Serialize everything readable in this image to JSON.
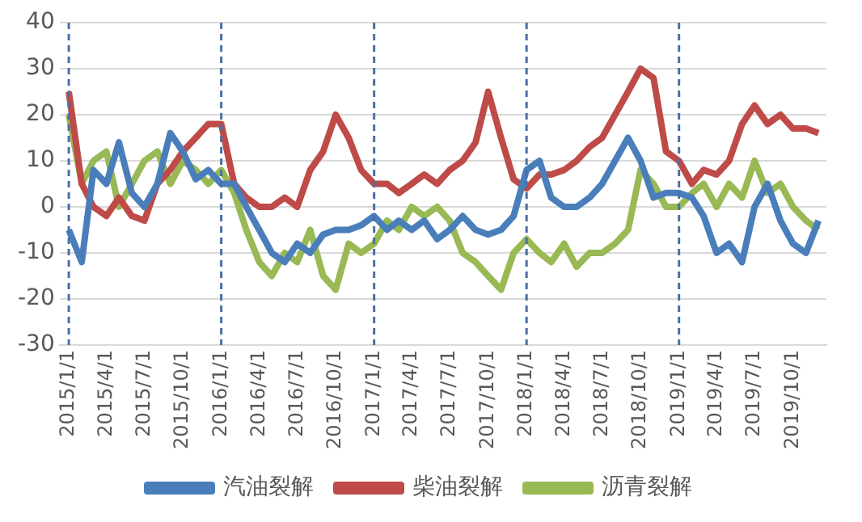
{
  "chart_data": {
    "type": "line",
    "x": [
      "2015-01-01",
      "2015-02-01",
      "2015-03-01",
      "2015-04-01",
      "2015-05-01",
      "2015-06-01",
      "2015-07-01",
      "2015-08-01",
      "2015-09-01",
      "2015-10-01",
      "2015-11-01",
      "2015-12-01",
      "2016-01-01",
      "2016-02-01",
      "2016-03-01",
      "2016-04-01",
      "2016-05-01",
      "2016-06-01",
      "2016-07-01",
      "2016-08-01",
      "2016-09-01",
      "2016-10-01",
      "2016-11-01",
      "2016-12-01",
      "2017-01-01",
      "2017-02-01",
      "2017-03-01",
      "2017-04-01",
      "2017-05-01",
      "2017-06-01",
      "2017-07-01",
      "2017-08-01",
      "2017-09-01",
      "2017-10-01",
      "2017-11-01",
      "2017-12-01",
      "2018-01-01",
      "2018-02-01",
      "2018-03-01",
      "2018-04-01",
      "2018-05-01",
      "2018-06-01",
      "2018-07-01",
      "2018-08-01",
      "2018-09-01",
      "2018-10-01",
      "2018-11-01",
      "2018-12-01",
      "2019-01-01",
      "2019-02-01",
      "2019-03-01",
      "2019-04-01",
      "2019-05-01",
      "2019-06-01",
      "2019-07-01",
      "2019-08-01",
      "2019-09-01",
      "2019-10-01",
      "2019-11-01",
      "2019-12-01"
    ],
    "series": [
      {
        "name": "汽油裂解",
        "color": "#4a7ebb",
        "values": [
          -5,
          -12,
          8,
          5,
          14,
          3,
          0,
          5,
          16,
          12,
          6,
          8,
          5,
          5,
          0,
          -5,
          -10,
          -12,
          -8,
          -10,
          -6,
          -5,
          -5,
          -4,
          -2,
          -5,
          -3,
          -5,
          -3,
          -7,
          -5,
          -2,
          -5,
          -6,
          -5,
          -2,
          8,
          10,
          2,
          0,
          0,
          2,
          5,
          10,
          15,
          10,
          2,
          3,
          3,
          2,
          -2,
          -10,
          -8,
          -12,
          0,
          5,
          -3,
          -8,
          -10,
          -3
        ]
      },
      {
        "name": "柴油裂解",
        "color": "#be4b48",
        "values": [
          25,
          5,
          0,
          -2,
          2,
          -2,
          -3,
          5,
          8,
          12,
          15,
          18,
          18,
          5,
          2,
          0,
          0,
          2,
          0,
          8,
          12,
          20,
          15,
          8,
          5,
          5,
          3,
          5,
          7,
          5,
          8,
          10,
          14,
          25,
          15,
          6,
          4,
          7,
          7,
          8,
          10,
          13,
          15,
          20,
          25,
          30,
          28,
          12,
          10,
          5,
          8,
          7,
          10,
          18,
          22,
          18,
          20,
          17,
          17,
          16
        ]
      },
      {
        "name": "沥青裂解",
        "color": "#98b954",
        "values": [
          20,
          5,
          10,
          12,
          0,
          5,
          10,
          12,
          5,
          10,
          8,
          5,
          8,
          3,
          -5,
          -12,
          -15,
          -10,
          -12,
          -5,
          -15,
          -18,
          -8,
          -10,
          -8,
          -3,
          -5,
          0,
          -2,
          0,
          -3,
          -10,
          -12,
          -15,
          -18,
          -10,
          -7,
          -10,
          -12,
          -8,
          -13,
          -10,
          -10,
          -8,
          -5,
          8,
          5,
          0,
          0,
          3,
          5,
          0,
          5,
          2,
          10,
          3,
          5,
          0,
          -3,
          -5
        ]
      }
    ],
    "xlim": [
      "2014-12-10",
      "2019-12-20"
    ],
    "xticks": [
      {
        "value": "2015-01-01",
        "label": "2015/1/1"
      },
      {
        "value": "2015-04-01",
        "label": "2015/4/1"
      },
      {
        "value": "2015-07-01",
        "label": "2015/7/1"
      },
      {
        "value": "2015-10-01",
        "label": "2015/10/1"
      },
      {
        "value": "2016-01-01",
        "label": "2016/1/1"
      },
      {
        "value": "2016-04-01",
        "label": "2016/4/1"
      },
      {
        "value": "2016-07-01",
        "label": "2016/7/1"
      },
      {
        "value": "2016-10-01",
        "label": "2016/10/1"
      },
      {
        "value": "2017-01-01",
        "label": "2017/1/1"
      },
      {
        "value": "2017-04-01",
        "label": "2017/4/1"
      },
      {
        "value": "2017-07-01",
        "label": "2017/7/1"
      },
      {
        "value": "2017-10-01",
        "label": "2017/10/1"
      },
      {
        "value": "2018-01-01",
        "label": "2018/1/1"
      },
      {
        "value": "2018-04-01",
        "label": "2018/4/1"
      },
      {
        "value": "2018-07-01",
        "label": "2018/7/1"
      },
      {
        "value": "2018-10-01",
        "label": "2018/10/1"
      },
      {
        "value": "2019-01-01",
        "label": "2019/1/1"
      },
      {
        "value": "2019-04-01",
        "label": "2019/4/1"
      },
      {
        "value": "2019-07-01",
        "label": "2019/7/1"
      },
      {
        "value": "2019-10-01",
        "label": "2019/10/1"
      }
    ],
    "ylim": [
      -30,
      40
    ],
    "yticks": [
      -30,
      -20,
      -10,
      0,
      10,
      20,
      30,
      40
    ],
    "ref_lines": [
      {
        "axis": "x",
        "value": "2015-01-01",
        "color": "#4a6fa5",
        "line_style": "dashed"
      },
      {
        "axis": "x",
        "value": "2016-01-01",
        "color": "#4a6fa5",
        "line_style": "dashed"
      },
      {
        "axis": "x",
        "value": "2017-01-01",
        "color": "#4a6fa5",
        "line_style": "dashed"
      },
      {
        "axis": "x",
        "value": "2018-01-01",
        "color": "#4a6fa5",
        "line_style": "dashed"
      },
      {
        "axis": "x",
        "value": "2019-01-01",
        "color": "#4a6fa5",
        "line_style": "dashed"
      }
    ],
    "grid": "y",
    "legend": "bottom",
    "marker": "none",
    "line_style": "solid"
  }
}
